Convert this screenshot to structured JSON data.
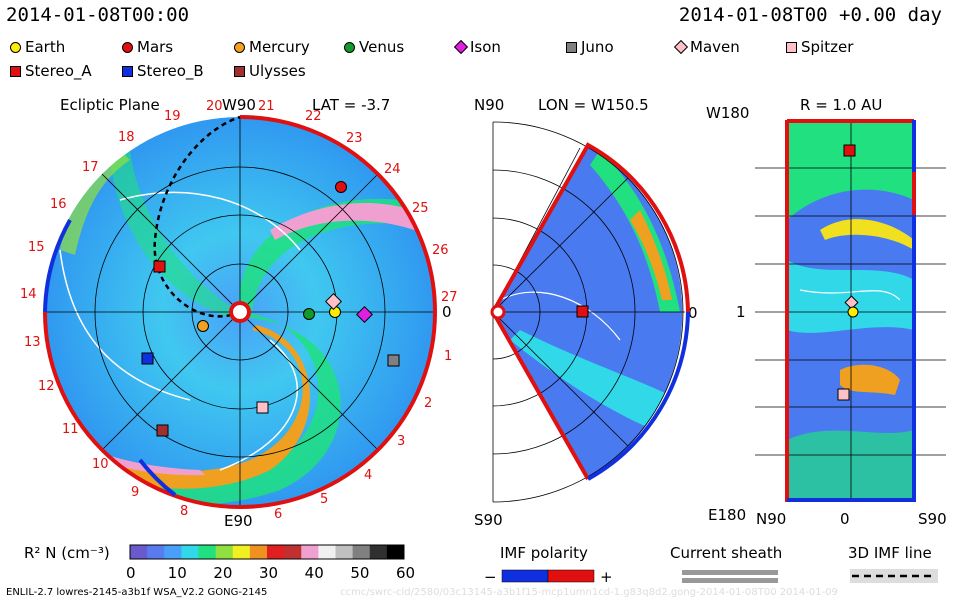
{
  "header": {
    "timestamp_left": "2014-01-08T00:00",
    "timestamp_right": "2014-01-08T00 +0.00 day"
  },
  "legend": [
    {
      "name": "Earth",
      "shape": "circle",
      "color": "#ffee00"
    },
    {
      "name": "Mars",
      "shape": "circle",
      "color": "#e01010"
    },
    {
      "name": "Mercury",
      "shape": "circle",
      "color": "#f4a020"
    },
    {
      "name": "Venus",
      "shape": "circle",
      "color": "#129a2a"
    },
    {
      "name": "Ison",
      "shape": "diamond",
      "color": "#e020e0"
    },
    {
      "name": "Juno",
      "shape": "square",
      "color": "#808080"
    },
    {
      "name": "Maven",
      "shape": "diamond",
      "color": "#ffc0c8"
    },
    {
      "name": "Spitzer",
      "shape": "square",
      "color": "#ffc0c8"
    },
    {
      "name": "Stereo_A",
      "shape": "square",
      "color": "#e01010"
    },
    {
      "name": "Stereo_B",
      "shape": "square",
      "color": "#1030e0"
    },
    {
      "name": "Ulysses",
      "shape": "square",
      "color": "#a03030"
    }
  ],
  "ecliptic": {
    "title": "Ecliptic Plane",
    "w90": "W90",
    "e90": "E90",
    "lat": "LAT = -3.7",
    "zero": "0",
    "deg": "0",
    "day_labels": [
      "1",
      "2",
      "3",
      "4",
      "5",
      "6",
      "8",
      "9",
      "10",
      "11",
      "12",
      "13",
      "14",
      "15",
      "16",
      "17",
      "18",
      "19",
      "20",
      "21",
      "22",
      "23",
      "24",
      "25",
      "26",
      "27"
    ]
  },
  "meridional": {
    "n90": "N90",
    "s90": "S90",
    "lon": "LON = W150.5",
    "zero": "0"
  },
  "radial": {
    "title": "R = 1.0 AU",
    "w180": "W180",
    "e180": "E180",
    "one": "1",
    "n90": "N90",
    "zero": "0",
    "s90": "S90"
  },
  "colorbar": {
    "label": "R² N (cm⁻³)",
    "ticks": [
      "0",
      "10",
      "20",
      "30",
      "40",
      "50",
      "60"
    ],
    "colors": [
      "#6a5acd",
      "#5a7af0",
      "#4aa0f8",
      "#30d8e8",
      "#20e080",
      "#90e040",
      "#f0f020",
      "#f09020",
      "#e02020",
      "#c03030",
      "#f0a0d0",
      "#f0f0f0",
      "#c0c0c0",
      "#808080",
      "#303030",
      "#000000"
    ]
  },
  "keys": {
    "imf_polarity": "IMF polarity",
    "minus": "−",
    "plus": "+",
    "current_sheath": "Current sheath",
    "imf_line": "3D IMF line"
  },
  "footer": "ENLIL-2.7 lowres-2145-a3b1f WSA_V2.2 GONG-2145",
  "watermark": "ccmc/swrc-cld/2580/03c13145-a3b1f15-mcp1umn1cd-1.g83q8d2.gong-2014-01-08T00 2014-01-09"
}
